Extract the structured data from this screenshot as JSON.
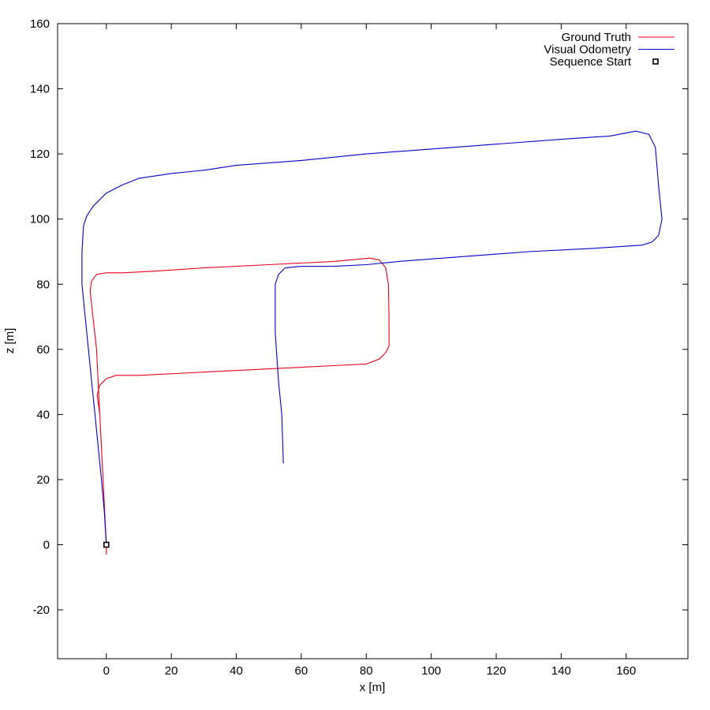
{
  "chart_data": {
    "type": "line",
    "xlabel": "x [m]",
    "ylabel": "z [m]",
    "xlim": [
      -15,
      179
    ],
    "ylim": [
      -35,
      160
    ],
    "xticks": [
      0,
      20,
      40,
      60,
      80,
      100,
      120,
      140,
      160
    ],
    "yticks": [
      -20,
      0,
      20,
      40,
      60,
      80,
      100,
      120,
      140,
      160
    ],
    "grid": false,
    "legend": "top-right",
    "series": [
      {
        "name": "Ground Truth",
        "color": "#e8001a",
        "points": [
          [
            0,
            -3
          ],
          [
            0,
            0
          ],
          [
            -0.4,
            8
          ],
          [
            -1,
            20
          ],
          [
            -1.5,
            30
          ],
          [
            -2,
            40
          ],
          [
            -2.8,
            46
          ],
          [
            -2,
            49
          ],
          [
            0,
            51
          ],
          [
            3,
            52
          ],
          [
            10,
            52
          ],
          [
            30,
            53
          ],
          [
            50,
            54
          ],
          [
            70,
            55
          ],
          [
            80,
            55.5
          ],
          [
            84,
            57
          ],
          [
            86,
            59
          ],
          [
            87,
            61
          ],
          [
            87,
            70
          ],
          [
            86.8,
            80
          ],
          [
            86,
            85
          ],
          [
            84,
            87.5
          ],
          [
            81,
            88
          ],
          [
            70,
            87
          ],
          [
            50,
            86
          ],
          [
            30,
            85
          ],
          [
            15,
            84
          ],
          [
            5,
            83.5
          ],
          [
            0,
            83.5
          ],
          [
            -3,
            83
          ],
          [
            -4.5,
            81
          ],
          [
            -5,
            78
          ],
          [
            -3,
            60
          ],
          [
            -2,
            40
          ],
          [
            -1.5,
            30
          ],
          [
            -1,
            20
          ]
        ]
      },
      {
        "name": "Visual Odometry",
        "color": "#0000c8",
        "points": [
          [
            0,
            0
          ],
          [
            -0.6,
            10
          ],
          [
            -1.5,
            20
          ],
          [
            -2.5,
            30
          ],
          [
            -3.5,
            40
          ],
          [
            -4.5,
            50
          ],
          [
            -5.5,
            60
          ],
          [
            -6.5,
            70
          ],
          [
            -7.5,
            80
          ],
          [
            -7.5,
            90
          ],
          [
            -7,
            98
          ],
          [
            -6,
            101
          ],
          [
            -4,
            104
          ],
          [
            0,
            108
          ],
          [
            5,
            110.5
          ],
          [
            10,
            112.5
          ],
          [
            20,
            114
          ],
          [
            30,
            115
          ],
          [
            40,
            116.5
          ],
          [
            60,
            118
          ],
          [
            80,
            120
          ],
          [
            100,
            121.5
          ],
          [
            120,
            123
          ],
          [
            140,
            124.5
          ],
          [
            155,
            125.5
          ],
          [
            163,
            127
          ],
          [
            167,
            126
          ],
          [
            169,
            122
          ],
          [
            170,
            110
          ],
          [
            171,
            100
          ],
          [
            170,
            95
          ],
          [
            168,
            93
          ],
          [
            165,
            92
          ],
          [
            150,
            91
          ],
          [
            130,
            90
          ],
          [
            110,
            88.5
          ],
          [
            90,
            87
          ],
          [
            80,
            86
          ],
          [
            70,
            85.5
          ],
          [
            60,
            85.5
          ],
          [
            55,
            85
          ],
          [
            53,
            83
          ],
          [
            52,
            80
          ],
          [
            52,
            65
          ],
          [
            53,
            50
          ],
          [
            54,
            40
          ],
          [
            54.5,
            25
          ]
        ]
      }
    ],
    "markers": [
      {
        "name": "Sequence Start",
        "x": 0,
        "y": 0,
        "color": "#000000"
      }
    ]
  }
}
